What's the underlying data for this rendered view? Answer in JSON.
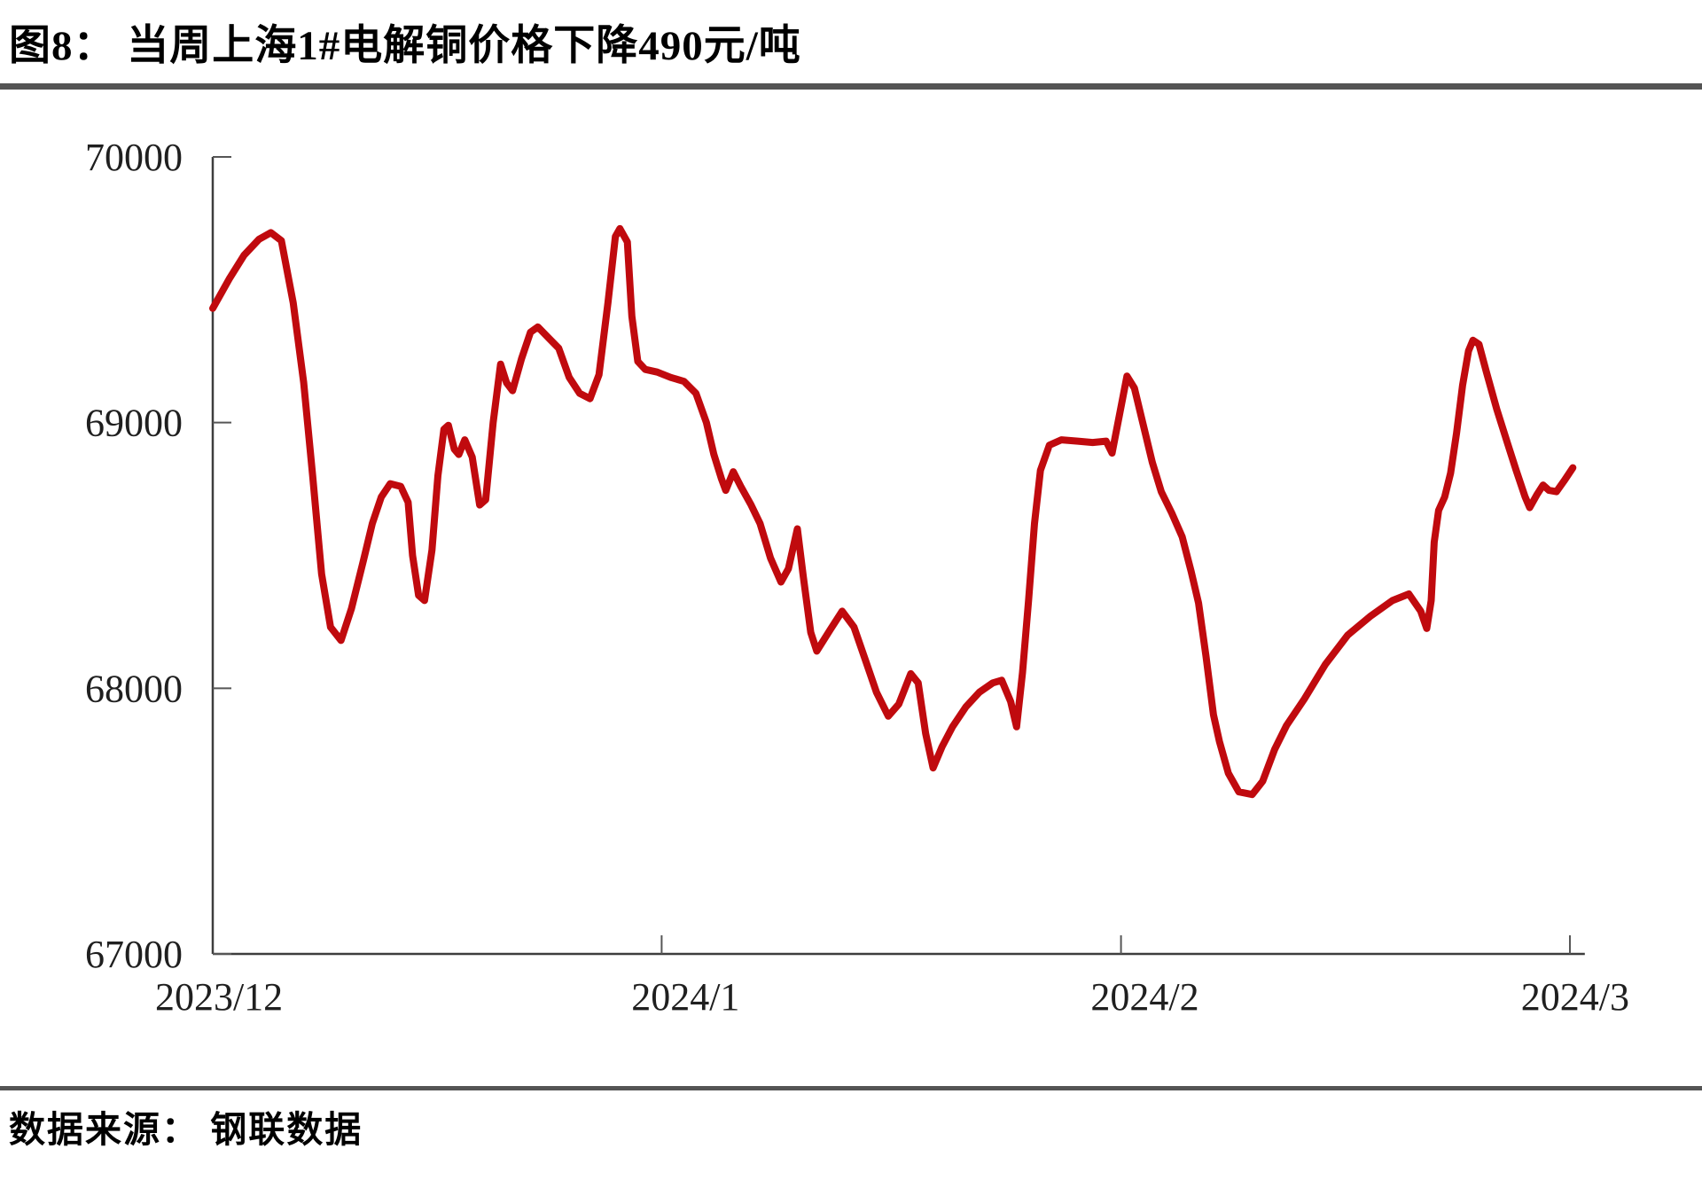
{
  "figure": {
    "title": "图8：  当周上海1#电解铜价格下降490元/吨",
    "source_label": "数据来源： 钢联数据"
  },
  "chart_data": {
    "type": "line",
    "title": "当周上海1#电解铜价格下降490元/吨",
    "series_name": "上海1#电解铜价格",
    "unit": "元/吨",
    "line_color": "#c00a0e",
    "axis_color": "#3d3d3d",
    "tick_color": "#565656",
    "label_color": "#1f1f1f",
    "grid": false,
    "legend": "none",
    "ylim": [
      67000,
      70000
    ],
    "y_ticks": [
      70000,
      69000,
      68000,
      67000
    ],
    "x_range_days": [
      0,
      92
    ],
    "x_ticks": [
      {
        "label": "2023/12",
        "tick_day": null,
        "label_day": 0.42
      },
      {
        "label": "2024/1",
        "tick_day": 30.1,
        "label_day": 31.7
      },
      {
        "label": "2024/2",
        "tick_day": 60.9,
        "label_day": 62.5
      },
      {
        "label": "2024/3",
        "tick_day": 91.0,
        "label_day": 91.35
      }
    ],
    "points": [
      [
        0,
        69430
      ],
      [
        1.1,
        69540
      ],
      [
        2.1,
        69630
      ],
      [
        3.1,
        69690
      ],
      [
        3.9,
        69715
      ],
      [
        4.6,
        69685
      ],
      [
        5.4,
        69450
      ],
      [
        6.1,
        69150
      ],
      [
        6.7,
        68800
      ],
      [
        7.3,
        68430
      ],
      [
        7.9,
        68230
      ],
      [
        8.6,
        68180
      ],
      [
        9.3,
        68300
      ],
      [
        10.1,
        68480
      ],
      [
        10.7,
        68620
      ],
      [
        11.3,
        68720
      ],
      [
        11.9,
        68770
      ],
      [
        12.6,
        68760
      ],
      [
        13.1,
        68700
      ],
      [
        13.4,
        68500
      ],
      [
        13.8,
        68350
      ],
      [
        14.2,
        68330
      ],
      [
        14.7,
        68520
      ],
      [
        15.1,
        68800
      ],
      [
        15.5,
        68975
      ],
      [
        15.8,
        68990
      ],
      [
        16.2,
        68900
      ],
      [
        16.5,
        68880
      ],
      [
        16.9,
        68935
      ],
      [
        17.4,
        68870
      ],
      [
        17.9,
        68690
      ],
      [
        18.3,
        68710
      ],
      [
        18.8,
        69000
      ],
      [
        19.3,
        69220
      ],
      [
        19.7,
        69150
      ],
      [
        20.1,
        69120
      ],
      [
        20.7,
        69240
      ],
      [
        21.3,
        69340
      ],
      [
        21.8,
        69360
      ],
      [
        22.5,
        69320
      ],
      [
        23.2,
        69280
      ],
      [
        23.9,
        69170
      ],
      [
        24.6,
        69110
      ],
      [
        25.3,
        69090
      ],
      [
        25.9,
        69180
      ],
      [
        26.5,
        69450
      ],
      [
        27.0,
        69700
      ],
      [
        27.3,
        69730
      ],
      [
        27.8,
        69680
      ],
      [
        28.1,
        69400
      ],
      [
        28.5,
        69230
      ],
      [
        29.0,
        69200
      ],
      [
        29.8,
        69190
      ],
      [
        30.7,
        69170
      ],
      [
        31.6,
        69155
      ],
      [
        32.4,
        69110
      ],
      [
        33.1,
        69000
      ],
      [
        33.6,
        68880
      ],
      [
        34.1,
        68790
      ],
      [
        34.4,
        68745
      ],
      [
        34.9,
        68815
      ],
      [
        35.4,
        68760
      ],
      [
        36.1,
        68690
      ],
      [
        36.7,
        68620
      ],
      [
        37.4,
        68490
      ],
      [
        38.1,
        68400
      ],
      [
        38.6,
        68450
      ],
      [
        39.2,
        68600
      ],
      [
        39.6,
        68420
      ],
      [
        40.1,
        68210
      ],
      [
        40.5,
        68140
      ],
      [
        41.4,
        68220
      ],
      [
        42.2,
        68290
      ],
      [
        43.0,
        68230
      ],
      [
        43.8,
        68100
      ],
      [
        44.5,
        67985
      ],
      [
        45.3,
        67895
      ],
      [
        46.0,
        67940
      ],
      [
        46.8,
        68055
      ],
      [
        47.3,
        68020
      ],
      [
        47.8,
        67830
      ],
      [
        48.3,
        67700
      ],
      [
        48.9,
        67780
      ],
      [
        49.6,
        67855
      ],
      [
        50.5,
        67930
      ],
      [
        51.4,
        67985
      ],
      [
        52.3,
        68020
      ],
      [
        52.9,
        68030
      ],
      [
        53.5,
        67950
      ],
      [
        53.9,
        67855
      ],
      [
        54.3,
        68060
      ],
      [
        54.7,
        68330
      ],
      [
        55.1,
        68620
      ],
      [
        55.5,
        68820
      ],
      [
        56.1,
        68915
      ],
      [
        56.9,
        68935
      ],
      [
        58.0,
        68930
      ],
      [
        59.0,
        68925
      ],
      [
        59.9,
        68930
      ],
      [
        60.3,
        68885
      ],
      [
        60.8,
        69030
      ],
      [
        61.3,
        69175
      ],
      [
        61.8,
        69130
      ],
      [
        62.4,
        68990
      ],
      [
        63.0,
        68850
      ],
      [
        63.6,
        68740
      ],
      [
        64.3,
        68660
      ],
      [
        65.0,
        68570
      ],
      [
        65.6,
        68440
      ],
      [
        66.1,
        68320
      ],
      [
        66.6,
        68120
      ],
      [
        67.1,
        67900
      ],
      [
        67.5,
        67800
      ],
      [
        68.1,
        67680
      ],
      [
        68.8,
        67610
      ],
      [
        69.7,
        67600
      ],
      [
        70.4,
        67650
      ],
      [
        71.2,
        67770
      ],
      [
        72.0,
        67860
      ],
      [
        73.2,
        67960
      ],
      [
        74.6,
        68090
      ],
      [
        76.1,
        68200
      ],
      [
        77.6,
        68270
      ],
      [
        79.1,
        68330
      ],
      [
        80.2,
        68355
      ],
      [
        81.0,
        68290
      ],
      [
        81.4,
        68225
      ],
      [
        81.7,
        68330
      ],
      [
        81.9,
        68550
      ],
      [
        82.2,
        68670
      ],
      [
        82.6,
        68720
      ],
      [
        83.0,
        68810
      ],
      [
        83.4,
        68960
      ],
      [
        83.8,
        69140
      ],
      [
        84.2,
        69270
      ],
      [
        84.5,
        69310
      ],
      [
        84.9,
        69295
      ],
      [
        85.4,
        69190
      ],
      [
        86.1,
        69050
      ],
      [
        86.8,
        68925
      ],
      [
        87.4,
        68820
      ],
      [
        88.0,
        68720
      ],
      [
        88.3,
        68680
      ],
      [
        88.8,
        68730
      ],
      [
        89.2,
        68765
      ],
      [
        89.6,
        68745
      ],
      [
        90.1,
        68740
      ],
      [
        90.6,
        68780
      ],
      [
        91.2,
        68830
      ]
    ]
  }
}
